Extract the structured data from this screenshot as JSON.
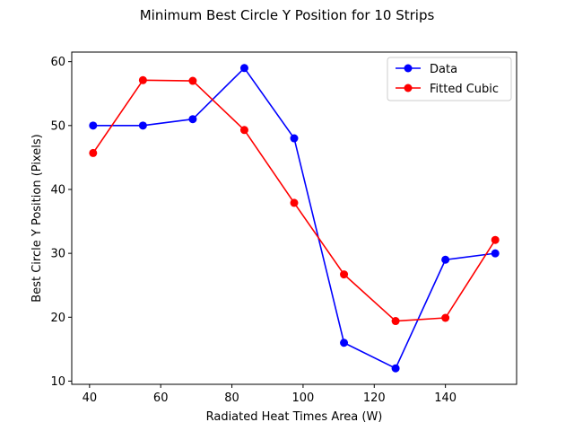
{
  "chart_data": {
    "type": "line",
    "title": "Minimum Best Circle Y Position for 10 Strips",
    "xlabel": "Radiated Heat Times Area (W)",
    "ylabel": "Best Circle Y Position (Pixels)",
    "xlim": [
      35,
      160
    ],
    "ylim": [
      9.5,
      61.5
    ],
    "xticks": [
      40,
      60,
      80,
      100,
      120,
      140
    ],
    "yticks": [
      10,
      20,
      30,
      40,
      50,
      60
    ],
    "grid": false,
    "legend_position": "top-right",
    "series": [
      {
        "name": "Data",
        "color": "#0000ff",
        "marker": "circle",
        "x": [
          41,
          55,
          69,
          83.5,
          97.5,
          111.5,
          126,
          140,
          154
        ],
        "y": [
          50,
          50,
          51,
          59,
          48,
          16,
          12,
          29,
          30
        ]
      },
      {
        "name": "Fitted Cubic",
        "color": "#ff0000",
        "marker": "circle",
        "x": [
          41,
          55,
          69,
          83.5,
          97.5,
          111.5,
          126,
          140,
          154
        ],
        "y": [
          45.7,
          57.1,
          57.0,
          49.3,
          37.9,
          26.7,
          19.4,
          19.9,
          32.1
        ]
      }
    ]
  }
}
